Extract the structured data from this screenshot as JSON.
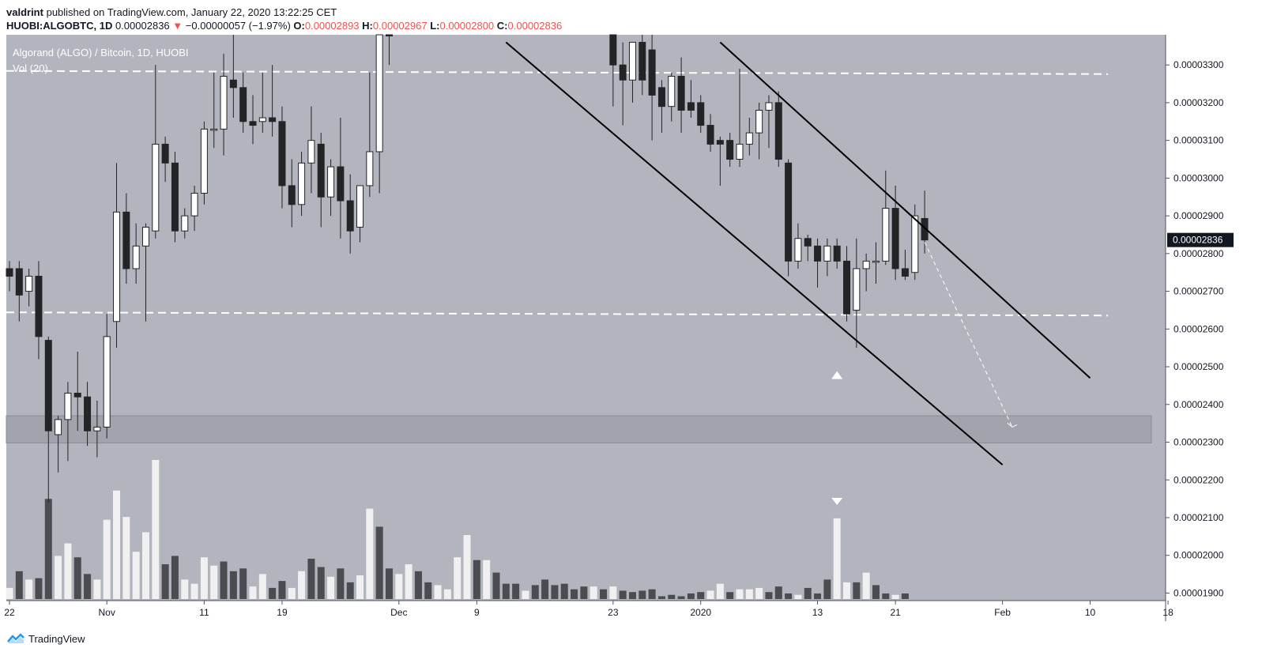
{
  "header": {
    "author": "valdrint",
    "published_text": "published on TradingView.com, January 22, 2020 13:22:25 CET"
  },
  "symbol_bar": {
    "symbol": "HUOBI:ALGOBTC, 1D",
    "price": "0.00002836",
    "change_arrow": "▼",
    "change": "−0.00000057 (−1.97%)",
    "o_label": "O:",
    "o": "0.00002893",
    "h_label": "H:",
    "h": "0.00002967",
    "l_label": "L:",
    "l": "0.00002800",
    "c_label": "C:",
    "c": "0.00002836"
  },
  "legend": {
    "title": "Algorand (ALGO) / Bitcoin, 1D, HUOBI",
    "volume": "Vol (20)"
  },
  "footer": {
    "brand": "TradingView"
  },
  "colors": {
    "plot_bg": "#b2b5be",
    "up_candle": "#ffffff",
    "down_candle": "#222426",
    "up_volume": "#f0f0f0",
    "down_volume": "#4a4c50",
    "support_zone": "#a1a4ad",
    "price_badge": "#131722",
    "negative": "#ef5350"
  },
  "chart_data": {
    "type": "candlestick",
    "title": "Algorand (ALGO) / Bitcoin, 1D, HUOBI",
    "y_range": [
      1.88e-05,
      3.38e-05
    ],
    "y_ticks": [
      "0.00003300",
      "0.00003200",
      "0.00003100",
      "0.00003000",
      "0.00002900",
      "0.00002800",
      "0.00002700",
      "0.00002600",
      "0.00002500",
      "0.00002400",
      "0.00002300",
      "0.00002200",
      "0.00002100",
      "0.00002000",
      "0.00001900"
    ],
    "y_tick_values": [
      3.3e-05,
      3.2e-05,
      3.1e-05,
      3e-05,
      2.9e-05,
      2.8e-05,
      2.7e-05,
      2.6e-05,
      2.5e-05,
      2.4e-05,
      2.3e-05,
      2.2e-05,
      2.1e-05,
      2e-05,
      1.9e-05
    ],
    "x_ticks": [
      {
        "label": "22",
        "day": 0
      },
      {
        "label": "Nov",
        "day": 10
      },
      {
        "label": "11",
        "day": 20
      },
      {
        "label": "19",
        "day": 28
      },
      {
        "label": "Dec",
        "day": 40
      },
      {
        "label": "9",
        "day": 48
      },
      {
        "label": "23",
        "day": 62
      },
      {
        "label": "2020",
        "day": 71
      },
      {
        "label": "13",
        "day": 83
      },
      {
        "label": "21",
        "day": 91
      },
      {
        "label": "Feb",
        "day": 102
      },
      {
        "label": "10",
        "day": 111
      },
      {
        "label": "18",
        "day": 119
      }
    ],
    "last_price_label": "0.00002836",
    "last_price": 2.836e-05,
    "resistance_line": 3.28e-05,
    "support_line": 2.64e-05,
    "support_zone": [
      2.298e-05,
      2.37e-05
    ],
    "channel_upper": [
      {
        "day": 73,
        "price": 3.36e-05
      },
      {
        "day": 111,
        "price": 2.47e-05
      }
    ],
    "channel_lower": [
      {
        "day": 51,
        "price": 3.36e-05
      },
      {
        "day": 102,
        "price": 2.24e-05
      }
    ],
    "projection": [
      {
        "day": 94,
        "price": 2.83e-05
      },
      {
        "day": 103,
        "price": 2.34e-05
      }
    ],
    "arrow_marker": {
      "day": 85,
      "price": 2.48e-05
    },
    "volume_marker_day": 85,
    "candles": [
      {
        "d": 0,
        "o": 2.76e-05,
        "h": 2.78e-05,
        "l": 2.7e-05,
        "c": 2.74e-05
      },
      {
        "d": 1,
        "o": 2.76e-05,
        "h": 2.78e-05,
        "l": 2.62e-05,
        "c": 2.69e-05
      },
      {
        "d": 2,
        "o": 2.7e-05,
        "h": 2.76e-05,
        "l": 2.66e-05,
        "c": 2.74e-05
      },
      {
        "d": 3,
        "o": 2.74e-05,
        "h": 2.78e-05,
        "l": 2.52e-05,
        "c": 2.58e-05
      },
      {
        "d": 4,
        "o": 2.57e-05,
        "h": 2.58e-05,
        "l": 2.14e-05,
        "c": 2.33e-05
      },
      {
        "d": 5,
        "o": 2.32e-05,
        "h": 2.37e-05,
        "l": 2.22e-05,
        "c": 2.36e-05
      },
      {
        "d": 6,
        "o": 2.36e-05,
        "h": 2.46e-05,
        "l": 2.25e-05,
        "c": 2.43e-05
      },
      {
        "d": 7,
        "o": 2.43e-05,
        "h": 2.54e-05,
        "l": 2.33e-05,
        "c": 2.42e-05
      },
      {
        "d": 8,
        "o": 2.42e-05,
        "h": 2.46e-05,
        "l": 2.29e-05,
        "c": 2.33e-05
      },
      {
        "d": 9,
        "o": 2.33e-05,
        "h": 2.41e-05,
        "l": 2.26e-05,
        "c": 2.34e-05
      },
      {
        "d": 10,
        "o": 2.34e-05,
        "h": 2.64e-05,
        "l": 2.31e-05,
        "c": 2.58e-05
      },
      {
        "d": 11,
        "o": 2.62e-05,
        "h": 3.04e-05,
        "l": 2.55e-05,
        "c": 2.91e-05
      },
      {
        "d": 12,
        "o": 2.91e-05,
        "h": 2.96e-05,
        "l": 2.72e-05,
        "c": 2.76e-05
      },
      {
        "d": 13,
        "o": 2.76e-05,
        "h": 2.88e-05,
        "l": 2.72e-05,
        "c": 2.82e-05
      },
      {
        "d": 14,
        "o": 2.82e-05,
        "h": 2.88e-05,
        "l": 2.62e-05,
        "c": 2.87e-05
      },
      {
        "d": 15,
        "o": 2.86e-05,
        "h": 3.3e-05,
        "l": 2.84e-05,
        "c": 3.09e-05
      },
      {
        "d": 16,
        "o": 3.09e-05,
        "h": 3.11e-05,
        "l": 2.99e-05,
        "c": 3.04e-05
      },
      {
        "d": 17,
        "o": 3.04e-05,
        "h": 3.07e-05,
        "l": 2.83e-05,
        "c": 2.86e-05
      },
      {
        "d": 18,
        "o": 2.86e-05,
        "h": 2.92e-05,
        "l": 2.84e-05,
        "c": 2.9e-05
      },
      {
        "d": 19,
        "o": 2.9e-05,
        "h": 2.98e-05,
        "l": 2.86e-05,
        "c": 2.96e-05
      },
      {
        "d": 20,
        "o": 2.96e-05,
        "h": 3.15e-05,
        "l": 2.93e-05,
        "c": 3.13e-05
      },
      {
        "d": 21,
        "o": 3.13e-05,
        "h": 3.28e-05,
        "l": 3.08e-05,
        "c": 3.13e-05
      },
      {
        "d": 22,
        "o": 3.13e-05,
        "h": 3.33e-05,
        "l": 3.06e-05,
        "c": 3.27e-05
      },
      {
        "d": 23,
        "o": 3.26e-05,
        "h": 3.42e-05,
        "l": 3.16e-05,
        "c": 3.24e-05
      },
      {
        "d": 24,
        "o": 3.24e-05,
        "h": 3.28e-05,
        "l": 3.12e-05,
        "c": 3.15e-05
      },
      {
        "d": 25,
        "o": 3.15e-05,
        "h": 3.22e-05,
        "l": 3.09e-05,
        "c": 3.14e-05
      },
      {
        "d": 26,
        "o": 3.15e-05,
        "h": 3.28e-05,
        "l": 3.12e-05,
        "c": 3.16e-05
      },
      {
        "d": 27,
        "o": 3.16e-05,
        "h": 3.3e-05,
        "l": 3.11e-05,
        "c": 3.15e-05
      },
      {
        "d": 28,
        "o": 3.15e-05,
        "h": 3.19e-05,
        "l": 2.92e-05,
        "c": 2.98e-05
      },
      {
        "d": 29,
        "o": 2.98e-05,
        "h": 3.05e-05,
        "l": 2.87e-05,
        "c": 2.93e-05
      },
      {
        "d": 30,
        "o": 2.93e-05,
        "h": 3.07e-05,
        "l": 2.9e-05,
        "c": 3.04e-05
      },
      {
        "d": 31,
        "o": 3.04e-05,
        "h": 3.19e-05,
        "l": 2.96e-05,
        "c": 3.1e-05
      },
      {
        "d": 32,
        "o": 3.09e-05,
        "h": 3.12e-05,
        "l": 2.87e-05,
        "c": 2.95e-05
      },
      {
        "d": 33,
        "o": 2.95e-05,
        "h": 3.05e-05,
        "l": 2.9e-05,
        "c": 3.03e-05
      },
      {
        "d": 34,
        "o": 3.03e-05,
        "h": 3.16e-05,
        "l": 2.84e-05,
        "c": 2.94e-05
      },
      {
        "d": 35,
        "o": 2.94e-05,
        "h": 3.01e-05,
        "l": 2.8e-05,
        "c": 2.86e-05
      },
      {
        "d": 36,
        "o": 2.87e-05,
        "h": 2.98e-05,
        "l": 2.83e-05,
        "c": 2.98e-05
      },
      {
        "d": 37,
        "o": 2.98e-05,
        "h": 3.28e-05,
        "l": 2.95e-05,
        "c": 3.07e-05
      },
      {
        "d": 38,
        "o": 3.07e-05,
        "h": 3.45e-05,
        "l": 2.96e-05,
        "c": 3.42e-05
      },
      {
        "d": 39,
        "o": 3.42e-05,
        "h": 3.52e-05,
        "l": 3.3e-05,
        "c": 3.38e-05
      },
      {
        "d": 62,
        "o": 3.42e-05,
        "h": 3.45e-05,
        "l": 3.19e-05,
        "c": 3.3e-05
      },
      {
        "d": 63,
        "o": 3.3e-05,
        "h": 3.36e-05,
        "l": 3.14e-05,
        "c": 3.26e-05
      },
      {
        "d": 64,
        "o": 3.26e-05,
        "h": 3.36e-05,
        "l": 3.2e-05,
        "c": 3.36e-05
      },
      {
        "d": 65,
        "o": 3.36e-05,
        "h": 3.4e-05,
        "l": 3.22e-05,
        "c": 3.26e-05
      },
      {
        "d": 66,
        "o": 3.34e-05,
        "h": 3.38e-05,
        "l": 3.1e-05,
        "c": 3.22e-05
      },
      {
        "d": 67,
        "o": 3.24e-05,
        "h": 3.26e-05,
        "l": 3.12e-05,
        "c": 3.19e-05
      },
      {
        "d": 68,
        "o": 3.19e-05,
        "h": 3.28e-05,
        "l": 3.15e-05,
        "c": 3.27e-05
      },
      {
        "d": 69,
        "o": 3.27e-05,
        "h": 3.32e-05,
        "l": 3.12e-05,
        "c": 3.18e-05
      },
      {
        "d": 70,
        "o": 3.2e-05,
        "h": 3.26e-05,
        "l": 3.16e-05,
        "c": 3.18e-05
      },
      {
        "d": 71,
        "o": 3.2e-05,
        "h": 3.22e-05,
        "l": 3.12e-05,
        "c": 3.14e-05
      },
      {
        "d": 72,
        "o": 3.14e-05,
        "h": 3.17e-05,
        "l": 3.07e-05,
        "c": 3.09e-05
      },
      {
        "d": 73,
        "o": 3.1e-05,
        "h": 3.11e-05,
        "l": 2.98e-05,
        "c": 3.09e-05
      },
      {
        "d": 74,
        "o": 3.1e-05,
        "h": 3.12e-05,
        "l": 3.03e-05,
        "c": 3.05e-05
      },
      {
        "d": 75,
        "o": 3.05e-05,
        "h": 3.29e-05,
        "l": 3.03e-05,
        "c": 3.09e-05
      },
      {
        "d": 76,
        "o": 3.09e-05,
        "h": 3.16e-05,
        "l": 3.06e-05,
        "c": 3.12e-05
      },
      {
        "d": 77,
        "o": 3.12e-05,
        "h": 3.2e-05,
        "l": 3.05e-05,
        "c": 3.18e-05
      },
      {
        "d": 78,
        "o": 3.18e-05,
        "h": 3.22e-05,
        "l": 3.08e-05,
        "c": 3.2e-05
      },
      {
        "d": 79,
        "o": 3.2e-05,
        "h": 3.23e-05,
        "l": 3.03e-05,
        "c": 3.05e-05
      },
      {
        "d": 80,
        "o": 3.04e-05,
        "h": 3.05e-05,
        "l": 2.74e-05,
        "c": 2.78e-05
      },
      {
        "d": 81,
        "o": 2.78e-05,
        "h": 2.88e-05,
        "l": 2.76e-05,
        "c": 2.84e-05
      },
      {
        "d": 82,
        "o": 2.84e-05,
        "h": 2.85e-05,
        "l": 2.78e-05,
        "c": 2.82e-05
      },
      {
        "d": 83,
        "o": 2.82e-05,
        "h": 2.84e-05,
        "l": 2.71e-05,
        "c": 2.78e-05
      },
      {
        "d": 84,
        "o": 2.78e-05,
        "h": 2.84e-05,
        "l": 2.74e-05,
        "c": 2.82e-05
      },
      {
        "d": 85,
        "o": 2.82e-05,
        "h": 2.84e-05,
        "l": 2.76e-05,
        "c": 2.78e-05
      },
      {
        "d": 86,
        "o": 2.78e-05,
        "h": 2.82e-05,
        "l": 2.62e-05,
        "c": 2.64e-05
      },
      {
        "d": 87,
        "o": 2.65e-05,
        "h": 2.84e-05,
        "l": 2.55e-05,
        "c": 2.76e-05
      },
      {
        "d": 88,
        "o": 2.76e-05,
        "h": 2.8e-05,
        "l": 2.7e-05,
        "c": 2.78e-05
      },
      {
        "d": 89,
        "o": 2.78e-05,
        "h": 2.83e-05,
        "l": 2.72e-05,
        "c": 2.78e-05
      },
      {
        "d": 90,
        "o": 2.78e-05,
        "h": 3.02e-05,
        "l": 2.77e-05,
        "c": 2.92e-05
      },
      {
        "d": 91,
        "o": 2.92e-05,
        "h": 2.98e-05,
        "l": 2.73e-05,
        "c": 2.76e-05
      },
      {
        "d": 92,
        "o": 2.76e-05,
        "h": 2.81e-05,
        "l": 2.73e-05,
        "c": 2.74e-05
      },
      {
        "d": 93,
        "o": 2.75e-05,
        "h": 2.93e-05,
        "l": 2.73e-05,
        "c": 2.9e-05
      },
      {
        "d": 94,
        "o": 2.893e-05,
        "h": 2.967e-05,
        "l": 2.8e-05,
        "c": 2.836e-05
      }
    ],
    "volumes": [
      {
        "d": 0,
        "v": 0.08,
        "up": true
      },
      {
        "d": 1,
        "v": 0.2,
        "up": false
      },
      {
        "d": 2,
        "v": 0.14,
        "up": true
      },
      {
        "d": 3,
        "v": 0.15,
        "up": false
      },
      {
        "d": 4,
        "v": 0.72,
        "up": false
      },
      {
        "d": 5,
        "v": 0.31,
        "up": true
      },
      {
        "d": 6,
        "v": 0.4,
        "up": true
      },
      {
        "d": 7,
        "v": 0.3,
        "up": false
      },
      {
        "d": 8,
        "v": 0.18,
        "up": false
      },
      {
        "d": 9,
        "v": 0.14,
        "up": true
      },
      {
        "d": 10,
        "v": 0.57,
        "up": true
      },
      {
        "d": 11,
        "v": 0.78,
        "up": true
      },
      {
        "d": 12,
        "v": 0.59,
        "up": true
      },
      {
        "d": 13,
        "v": 0.34,
        "up": true
      },
      {
        "d": 14,
        "v": 0.48,
        "up": true
      },
      {
        "d": 15,
        "v": 1.0,
        "up": true
      },
      {
        "d": 16,
        "v": 0.25,
        "up": false
      },
      {
        "d": 17,
        "v": 0.31,
        "up": false
      },
      {
        "d": 18,
        "v": 0.14,
        "up": true
      },
      {
        "d": 19,
        "v": 0.11,
        "up": true
      },
      {
        "d": 20,
        "v": 0.3,
        "up": true
      },
      {
        "d": 21,
        "v": 0.24,
        "up": true
      },
      {
        "d": 22,
        "v": 0.27,
        "up": false
      },
      {
        "d": 23,
        "v": 0.2,
        "up": false
      },
      {
        "d": 24,
        "v": 0.22,
        "up": false
      },
      {
        "d": 25,
        "v": 0.09,
        "up": true
      },
      {
        "d": 26,
        "v": 0.18,
        "up": true
      },
      {
        "d": 27,
        "v": 0.08,
        "up": false
      },
      {
        "d": 28,
        "v": 0.13,
        "up": false
      },
      {
        "d": 29,
        "v": 0.08,
        "up": true
      },
      {
        "d": 30,
        "v": 0.2,
        "up": true
      },
      {
        "d": 31,
        "v": 0.29,
        "up": false
      },
      {
        "d": 32,
        "v": 0.23,
        "up": false
      },
      {
        "d": 33,
        "v": 0.16,
        "up": true
      },
      {
        "d": 34,
        "v": 0.22,
        "up": false
      },
      {
        "d": 35,
        "v": 0.12,
        "up": false
      },
      {
        "d": 36,
        "v": 0.17,
        "up": true
      },
      {
        "d": 37,
        "v": 0.65,
        "up": true
      },
      {
        "d": 38,
        "v": 0.52,
        "up": false
      },
      {
        "d": 39,
        "v": 0.22,
        "up": false
      },
      {
        "d": 40,
        "v": 0.18,
        "up": true
      },
      {
        "d": 41,
        "v": 0.25,
        "up": true
      },
      {
        "d": 42,
        "v": 0.2,
        "up": false
      },
      {
        "d": 43,
        "v": 0.12,
        "up": false
      },
      {
        "d": 44,
        "v": 0.1,
        "up": true
      },
      {
        "d": 45,
        "v": 0.07,
        "up": true
      },
      {
        "d": 46,
        "v": 0.3,
        "up": true
      },
      {
        "d": 47,
        "v": 0.46,
        "up": true
      },
      {
        "d": 48,
        "v": 0.28,
        "up": false
      },
      {
        "d": 49,
        "v": 0.28,
        "up": true
      },
      {
        "d": 50,
        "v": 0.19,
        "up": false
      },
      {
        "d": 51,
        "v": 0.11,
        "up": false
      },
      {
        "d": 52,
        "v": 0.11,
        "up": false
      },
      {
        "d": 53,
        "v": 0.06,
        "up": true
      },
      {
        "d": 54,
        "v": 0.1,
        "up": false
      },
      {
        "d": 55,
        "v": 0.14,
        "up": false
      },
      {
        "d": 56,
        "v": 0.1,
        "up": false
      },
      {
        "d": 57,
        "v": 0.11,
        "up": false
      },
      {
        "d": 58,
        "v": 0.07,
        "up": false
      },
      {
        "d": 59,
        "v": 0.09,
        "up": false
      },
      {
        "d": 60,
        "v": 0.09,
        "up": true
      },
      {
        "d": 61,
        "v": 0.07,
        "up": false
      },
      {
        "d": 62,
        "v": 0.09,
        "up": true
      },
      {
        "d": 63,
        "v": 0.06,
        "up": false
      },
      {
        "d": 64,
        "v": 0.05,
        "up": false
      },
      {
        "d": 65,
        "v": 0.06,
        "up": false
      },
      {
        "d": 66,
        "v": 0.07,
        "up": false
      },
      {
        "d": 67,
        "v": 0.02,
        "up": false
      },
      {
        "d": 68,
        "v": 0.03,
        "up": false
      },
      {
        "d": 69,
        "v": 0.02,
        "up": false
      },
      {
        "d": 70,
        "v": 0.04,
        "up": false
      },
      {
        "d": 71,
        "v": 0.05,
        "up": false
      },
      {
        "d": 72,
        "v": 0.06,
        "up": true
      },
      {
        "d": 73,
        "v": 0.11,
        "up": true
      },
      {
        "d": 74,
        "v": 0.05,
        "up": false
      },
      {
        "d": 75,
        "v": 0.07,
        "up": true
      },
      {
        "d": 76,
        "v": 0.07,
        "up": true
      },
      {
        "d": 77,
        "v": 0.08,
        "up": true
      },
      {
        "d": 78,
        "v": 0.05,
        "up": false
      },
      {
        "d": 79,
        "v": 0.09,
        "up": false
      },
      {
        "d": 80,
        "v": 0.04,
        "up": false
      },
      {
        "d": 81,
        "v": 0.03,
        "up": true
      },
      {
        "d": 82,
        "v": 0.08,
        "up": false
      },
      {
        "d": 83,
        "v": 0.04,
        "up": false
      },
      {
        "d": 84,
        "v": 0.14,
        "up": false
      },
      {
        "d": 85,
        "v": 0.58,
        "up": true
      },
      {
        "d": 86,
        "v": 0.12,
        "up": true
      },
      {
        "d": 87,
        "v": 0.12,
        "up": false
      },
      {
        "d": 88,
        "v": 0.19,
        "up": true
      },
      {
        "d": 89,
        "v": 0.1,
        "up": false
      },
      {
        "d": 90,
        "v": 0.04,
        "up": false
      },
      {
        "d": 91,
        "v": 0.03,
        "up": true
      },
      {
        "d": 92,
        "v": 0.04,
        "up": false
      }
    ]
  }
}
